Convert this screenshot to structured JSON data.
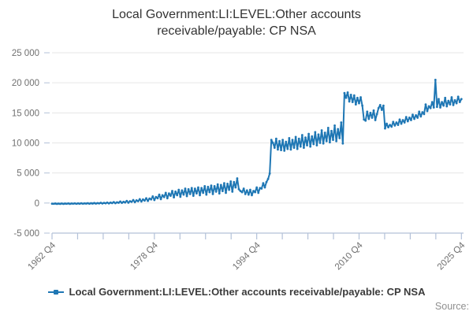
{
  "header": {
    "title": "Local Government:LI:LEVEL:Other accounts receivable/payable: CP NSA"
  },
  "legend": {
    "label": "Local Government:LI:LEVEL:Other accounts receivable/payable: CP NSA",
    "marker": "line-with-square-marker-icon"
  },
  "footer": {
    "source_label": "Source:"
  },
  "chart_data": {
    "type": "line",
    "title": "Local Government:LI:LEVEL:Other accounts receivable/payable: CP NSA",
    "frequency": "quarterly",
    "x_start": "1962 Q4",
    "x_end": "2025 Q4",
    "x_tick_labels": [
      "1962 Q4",
      "1978 Q4",
      "1994 Q4",
      "2010 Q4",
      "2025 Q4"
    ],
    "x_tick_label_positions": [
      0,
      4,
      8,
      12,
      16
    ],
    "x_minor_tick_count": 17,
    "ylim": [
      -5000,
      25000
    ],
    "y_ticks": [
      25000,
      20000,
      15000,
      10000,
      5000,
      0,
      -5000
    ],
    "y_tick_labels": [
      "25 000",
      "20 000",
      "15 000",
      "10 000",
      "5 000",
      "0",
      "-5 000"
    ],
    "grid": "horizontal-only",
    "legend_position": "bottom",
    "line_color": "#1f77b4",
    "grid_color": "#e6e6e6",
    "axis_line_color": "#b3c1d8",
    "tick_label_color": "#707070",
    "series": [
      {
        "name": "Local Government:LI:LEVEL:Other accounts receivable/payable: CP NSA",
        "start": "1962 Q4",
        "values": [
          -100,
          -120,
          -80,
          -130,
          -90,
          -130,
          -70,
          -140,
          -80,
          -120,
          -60,
          -130,
          -70,
          -110,
          -50,
          -120,
          -60,
          -100,
          -40,
          -110,
          -50,
          -90,
          -20,
          -100,
          -30,
          -80,
          0,
          -90,
          -10,
          -60,
          40,
          -70,
          30,
          -40,
          80,
          -50,
          70,
          0,
          150,
          -20,
          120,
          50,
          250,
          20,
          200,
          100,
          350,
          60,
          300,
          200,
          500,
          150,
          450,
          300,
          650,
          250,
          600,
          400,
          800,
          350,
          750,
          600,
          1100,
          500,
          1000,
          800,
          1400,
          650,
          1300,
          1000,
          1700,
          800,
          1600,
          1200,
          2000,
          950,
          1900,
          1300,
          2200,
          1050,
          2100,
          1400,
          2400,
          1150,
          2300,
          1500,
          2500,
          1200,
          2400,
          1600,
          2600,
          1300,
          2500,
          1700,
          2800,
          1400,
          2700,
          1800,
          2900,
          1500,
          2800,
          1900,
          3100,
          1600,
          3000,
          2000,
          3300,
          1700,
          3200,
          2200,
          3600,
          1900,
          3500,
          2600,
          4100,
          2300,
          2000,
          1800,
          2400,
          1500,
          2100,
          1400,
          2200,
          1300,
          2000,
          1800,
          2600,
          1700,
          2500,
          2400,
          3300,
          2600,
          3500,
          4000,
          4900,
          10500,
          10000,
          9200,
          10700,
          8900,
          10300,
          8800,
          10500,
          8700,
          10200,
          9000,
          10800,
          8900,
          10500,
          9200,
          11000,
          9000,
          10700,
          9400,
          11300,
          9200,
          10900,
          9600,
          11500,
          9400,
          11100,
          9800,
          11800,
          9600,
          11400,
          10000,
          12100,
          9900,
          11700,
          10300,
          12500,
          10100,
          12000,
          10500,
          12900,
          10300,
          12300,
          10800,
          13400,
          9900,
          18300,
          17500,
          18400,
          16900,
          18000,
          16800,
          17900,
          16400,
          17500,
          16600,
          17600,
          16200,
          13900,
          13700,
          15200,
          14000,
          15000,
          14200,
          15400,
          13800,
          14800,
          15800,
          16300,
          15500,
          16200,
          12400,
          13200,
          12600,
          13000,
          12700,
          13500,
          12900,
          13400,
          13000,
          13900,
          13200,
          13800,
          13400,
          14300,
          13600,
          14200,
          13800,
          14700,
          14000,
          14600,
          14200,
          15200,
          14400,
          15100,
          14800,
          16400,
          15300,
          16100,
          15800,
          16800,
          15900,
          20500,
          16000,
          17300,
          15900,
          16800,
          16200,
          17500,
          16100,
          17000,
          16400,
          17600,
          16300,
          17100,
          16600,
          17700,
          16800,
          17300
        ]
      }
    ]
  }
}
